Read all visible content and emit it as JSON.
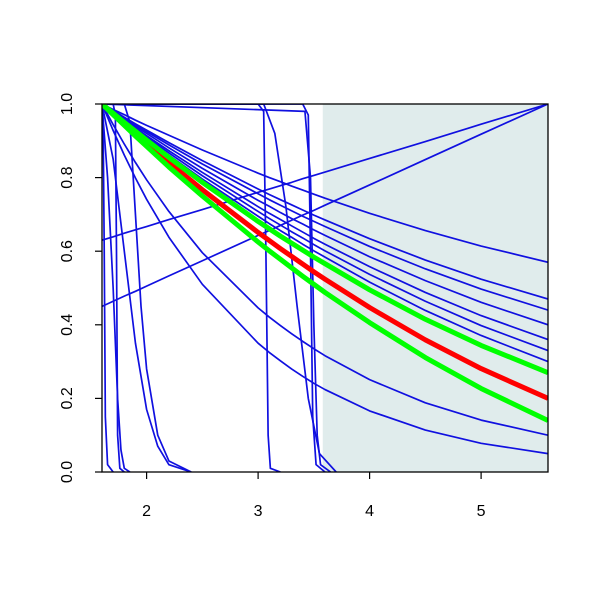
{
  "chart_data": {
    "type": "line",
    "xlim": [
      1.6,
      5.6
    ],
    "ylim": [
      0,
      1
    ],
    "xticks": [
      2,
      3,
      4,
      5
    ],
    "yticks": [
      {
        "value": 0,
        "label": "0.0"
      },
      0.2,
      0.4,
      0.6,
      0.8,
      {
        "value": 1,
        "label": "1.0"
      }
    ],
    "shade": {
      "xlim": [
        3.58,
        5.6
      ],
      "color": "#e0ecec"
    },
    "x": [
      1.6,
      1.7,
      1.8,
      1.9,
      2.0,
      2.2,
      2.5,
      3.0,
      3.1,
      3.2,
      3.3,
      3.4,
      3.5,
      3.6,
      4.0,
      4.5,
      5.0,
      5.6
    ],
    "series": [
      {
        "color": "#1010e0",
        "values": [
          1,
          0.985,
          0.971,
          0.956,
          0.942,
          0.915,
          0.875,
          0.812,
          0.8,
          0.789,
          0.777,
          0.766,
          0.755,
          0.744,
          0.703,
          0.656,
          0.614,
          0.57
        ]
      },
      {
        "color": "#1010e0",
        "values": [
          1,
          0.982,
          0.964,
          0.946,
          0.929,
          0.895,
          0.846,
          0.769,
          0.754,
          0.74,
          0.726,
          0.712,
          0.698,
          0.685,
          0.634,
          0.576,
          0.524,
          0.47
        ]
      },
      {
        "color": "#1010e0",
        "values": [
          1,
          0.981,
          0.962,
          0.943,
          0.925,
          0.889,
          0.837,
          0.756,
          0.74,
          0.725,
          0.71,
          0.695,
          0.681,
          0.667,
          0.613,
          0.552,
          0.497,
          0.44
        ]
      },
      {
        "color": "#1010e0",
        "values": [
          1,
          0.979,
          0.959,
          0.939,
          0.92,
          0.881,
          0.825,
          0.738,
          0.722,
          0.705,
          0.689,
          0.674,
          0.658,
          0.643,
          0.585,
          0.52,
          0.461,
          0.4
        ]
      },
      {
        "color": "#1010e0",
        "values": [
          1,
          0.978,
          0.956,
          0.935,
          0.914,
          0.873,
          0.814,
          0.721,
          0.703,
          0.686,
          0.669,
          0.652,
          0.635,
          0.619,
          0.558,
          0.488,
          0.425,
          0.36
        ]
      },
      {
        "color": "#1010e0",
        "values": [
          1,
          0.977,
          0.954,
          0.932,
          0.91,
          0.867,
          0.805,
          0.708,
          0.689,
          0.671,
          0.653,
          0.636,
          0.618,
          0.601,
          0.537,
          0.464,
          0.398,
          0.33
        ]
      },
      {
        "color": "#1010e0",
        "values": [
          1,
          0.976,
          0.952,
          0.929,
          0.906,
          0.861,
          0.796,
          0.695,
          0.675,
          0.656,
          0.638,
          0.619,
          0.601,
          0.584,
          0.516,
          0.439,
          0.371,
          0.3
        ]
      },
      {
        "color": "#1010e0",
        "values": [
          1,
          0.944,
          0.891,
          0.841,
          0.794,
          0.708,
          0.596,
          0.446,
          0.421,
          0.398,
          0.376,
          0.355,
          0.335,
          0.316,
          0.251,
          0.188,
          0.141,
          0.1
        ]
      },
      {
        "color": "#1010e0",
        "values": [
          1,
          0.928,
          0.861,
          0.799,
          0.741,
          0.638,
          0.51,
          0.35,
          0.325,
          0.302,
          0.28,
          0.26,
          0.241,
          0.224,
          0.166,
          0.114,
          0.078,
          0.05
        ]
      },
      {
        "color": "#1010e0",
        "values": [
          0.63,
          0.639,
          0.649,
          0.658,
          0.667,
          0.686,
          0.713,
          0.76,
          0.769,
          0.778,
          0.787,
          0.797,
          0.806,
          0.815,
          0.852,
          0.898,
          0.945,
          1.0
        ]
      },
      {
        "color": "#1010e0",
        "values": [
          0.45,
          0.464,
          0.478,
          0.491,
          0.505,
          0.533,
          0.574,
          0.643,
          0.656,
          0.67,
          0.684,
          0.698,
          0.711,
          0.725,
          0.78,
          0.849,
          0.918,
          1.0
        ]
      },
      {
        "color": "#1010e0",
        "x": [
          1.6,
          1.61,
          1.62,
          1.63,
          1.65,
          1.7
        ],
        "values": [
          1,
          0.95,
          0.6,
          0.15,
          0.02,
          0
        ]
      },
      {
        "color": "#1010e0",
        "x": [
          1.6,
          1.7,
          1.72,
          1.73,
          1.74,
          1.76,
          1.8
        ],
        "values": [
          1,
          1,
          0.97,
          0.6,
          0.1,
          0.01,
          0
        ]
      },
      {
        "color": "#1010e0",
        "x": [
          1.6,
          1.65,
          1.7,
          1.74,
          1.77,
          1.8,
          1.85
        ],
        "values": [
          1,
          0.8,
          0.5,
          0.2,
          0.06,
          0.01,
          0
        ]
      },
      {
        "color": "#1010e0",
        "x": [
          1.6,
          1.7,
          1.8,
          1.9,
          2.0,
          2.1,
          2.2,
          2.4
        ],
        "values": [
          1,
          0.85,
          0.6,
          0.35,
          0.17,
          0.07,
          0.02,
          0
        ]
      },
      {
        "color": "#1010e0",
        "x": [
          1.6,
          1.8,
          1.85,
          1.9,
          1.95,
          2.0,
          2.1,
          2.2,
          2.4
        ],
        "values": [
          1,
          1,
          0.95,
          0.7,
          0.45,
          0.28,
          0.1,
          0.03,
          0
        ]
      },
      {
        "color": "#1010e0",
        "x": [
          1.6,
          3.0,
          3.05,
          3.07,
          3.09,
          3.11,
          3.2
        ],
        "values": [
          1,
          1,
          0.98,
          0.6,
          0.1,
          0.01,
          0
        ]
      },
      {
        "color": "#1010e0",
        "x": [
          1.6,
          3.05,
          3.15,
          3.25,
          3.35,
          3.45,
          3.55,
          3.7
        ],
        "values": [
          1,
          1,
          0.92,
          0.72,
          0.45,
          0.2,
          0.05,
          0
        ]
      },
      {
        "color": "#1010e0",
        "x": [
          1.6,
          3.4,
          3.45,
          3.47,
          3.49,
          3.52,
          3.6
        ],
        "values": [
          1,
          1,
          0.97,
          0.6,
          0.15,
          0.02,
          0
        ]
      },
      {
        "color": "#1010e0",
        "x": [
          1.6,
          3.42,
          3.47,
          3.5,
          3.53,
          3.56,
          3.65
        ],
        "values": [
          1,
          0.98,
          0.8,
          0.4,
          0.1,
          0.02,
          0
        ]
      },
      {
        "color": "#ff0000",
        "values": [
          1,
          0.973,
          0.946,
          0.919,
          0.893,
          0.841,
          0.767,
          0.651,
          0.629,
          0.607,
          0.586,
          0.565,
          0.544,
          0.524,
          0.447,
          0.359,
          0.281,
          0.2
        ]
      },
      {
        "color": "#00ff00",
        "values": [
          1,
          0.975,
          0.95,
          0.926,
          0.902,
          0.855,
          0.787,
          0.681,
          0.661,
          0.641,
          0.622,
          0.603,
          0.584,
          0.566,
          0.495,
          0.415,
          0.344,
          0.27
        ]
      },
      {
        "color": "#00ff00",
        "values": [
          1,
          0.971,
          0.942,
          0.913,
          0.885,
          0.829,
          0.75,
          0.625,
          0.601,
          0.578,
          0.555,
          0.532,
          0.51,
          0.488,
          0.406,
          0.311,
          0.227,
          0.14
        ]
      }
    ]
  }
}
